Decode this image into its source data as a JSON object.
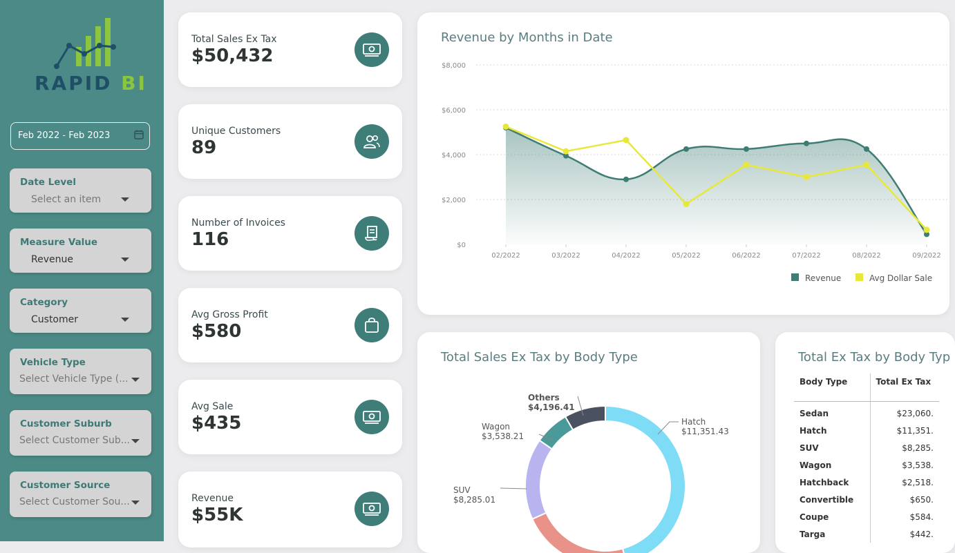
{
  "brand": {
    "name_part1": "RAPID",
    "name_part2": "BI"
  },
  "sidebar": {
    "date_range": "Feb 2022 - Feb 2023",
    "slicers": [
      {
        "title": "Date Level",
        "value": "Select an item",
        "placeholder": true
      },
      {
        "title": "Measure Value",
        "value": "Revenue",
        "placeholder": false
      },
      {
        "title": "Category",
        "value": "Customer",
        "placeholder": false
      },
      {
        "title": "Vehicle Type",
        "value": "Select Vehicle Type (...",
        "placeholder": true
      },
      {
        "title": "Customer Suburb",
        "value": "Select Customer Sub...",
        "placeholder": true
      },
      {
        "title": "Customer Source",
        "value": "Select Customer Sou...",
        "placeholder": true
      }
    ]
  },
  "kpis": [
    {
      "label": "Total Sales Ex Tax",
      "value": "$50,432",
      "icon": "money-icon"
    },
    {
      "label": "Unique Customers",
      "value": "89",
      "icon": "users-icon"
    },
    {
      "label": "Number of Invoices",
      "value": "116",
      "icon": "invoice-icon"
    },
    {
      "label": "Avg Gross Profit",
      "value": "$580",
      "icon": "shopping-bag-icon"
    },
    {
      "label": "Avg Sale",
      "value": "$435",
      "icon": "money-icon"
    },
    {
      "label": "Revenue",
      "value": "$55K",
      "icon": "money-icon"
    }
  ],
  "revenue_chart": {
    "title": "Revenue by Months in Date",
    "legend": [
      "Revenue",
      "Avg Dollar Sale"
    ]
  },
  "body_type_chart": {
    "title": "Total Sales Ex Tax by Body Type"
  },
  "body_type_table": {
    "title": "Total Ex Tax by Body Typ",
    "headers": [
      "Body Type",
      "Total Ex Tax"
    ],
    "rows": [
      [
        "Sedan",
        "$23,060."
      ],
      [
        "Hatch",
        "$11,351."
      ],
      [
        "SUV",
        "$8,285."
      ],
      [
        "Wagon",
        "$3,538."
      ],
      [
        "Hatchback",
        "$2,518."
      ],
      [
        "Convertible",
        "$650."
      ],
      [
        "Coupe",
        "$584."
      ],
      [
        "Targa",
        "$442."
      ]
    ]
  },
  "colors": {
    "sidebar": "#4b8a86",
    "revenue": "#3f7d74",
    "avg_dollar_sale": "#e8e83a",
    "hatch": "#e8928a",
    "sedan": "#7fdcf6",
    "suv": "#b8b4ef",
    "wagon": "#4b9a9a",
    "others": "#4a5160"
  },
  "chart_data": [
    {
      "type": "line",
      "title": "Revenue by Months in Date",
      "x": [
        "02/2022",
        "03/2022",
        "04/2022",
        "05/2022",
        "06/2022",
        "07/2022",
        "08/2022",
        "09/2022"
      ],
      "series": [
        {
          "name": "Revenue",
          "values": [
            5200,
            3950,
            2900,
            4250,
            4250,
            4500,
            4250,
            450
          ]
        },
        {
          "name": "Avg Dollar Sale",
          "values": [
            5250,
            4150,
            4650,
            1800,
            3550,
            3000,
            3550,
            650
          ]
        }
      ],
      "yticks": [
        "$0",
        "$2,000",
        "$4,000",
        "$6,000",
        "$8,000"
      ],
      "ylim": [
        0,
        8000
      ],
      "legend_position": "bottom-right"
    },
    {
      "type": "pie",
      "title": "Total Sales Ex Tax by Body Type",
      "categories": [
        "Sedan",
        "Hatch",
        "SUV",
        "Wagon",
        "Others"
      ],
      "values": [
        23060,
        11351.43,
        8285.01,
        3538.21,
        4196.41
      ],
      "slice_labels": [
        {
          "name": "Hatch",
          "value": "$11,351.43"
        },
        {
          "name": "SUV",
          "value": "$8,285.01"
        },
        {
          "name": "Wagon",
          "value": "$3,538.21"
        },
        {
          "name": "Others",
          "value": "$4,196.41"
        }
      ]
    }
  ]
}
